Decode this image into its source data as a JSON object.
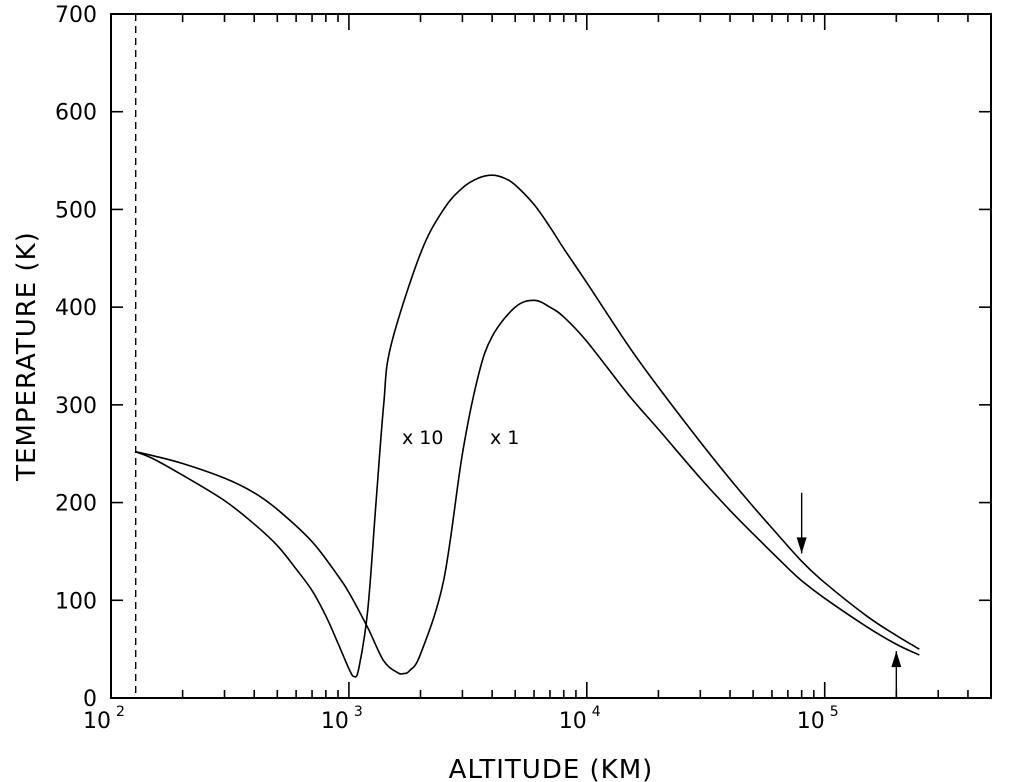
{
  "chart_data": {
    "type": "line",
    "title": "",
    "xlabel": "ALTITUDE (KM)",
    "ylabel": "TEMPERATURE (K)",
    "x_scale": "log",
    "xlim": [
      100,
      500000
    ],
    "ylim": [
      0,
      700
    ],
    "grid": false,
    "legend": "none",
    "x_ticks": [
      {
        "base": "10",
        "exp": "2"
      },
      {
        "base": "10",
        "exp": "3"
      },
      {
        "base": "10",
        "exp": "4"
      },
      {
        "base": "10",
        "exp": "5"
      }
    ],
    "y_ticks": [
      "0",
      "100",
      "200",
      "300",
      "400",
      "500",
      "600",
      "700"
    ],
    "reference_line": {
      "x": 127,
      "style": "dashed"
    },
    "series": [
      {
        "name": "x10",
        "label": "x 10",
        "points": [
          [
            127,
            252
          ],
          [
            150,
            245
          ],
          [
            200,
            228
          ],
          [
            300,
            202
          ],
          [
            400,
            178
          ],
          [
            500,
            156
          ],
          [
            600,
            132
          ],
          [
            700,
            110
          ],
          [
            800,
            84
          ],
          [
            900,
            56
          ],
          [
            1000,
            30
          ],
          [
            1050,
            22
          ],
          [
            1100,
            30
          ],
          [
            1200,
            90
          ],
          [
            1300,
            200
          ],
          [
            1400,
            300
          ],
          [
            1500,
            360
          ],
          [
            2000,
            455
          ],
          [
            2500,
            500
          ],
          [
            3000,
            522
          ],
          [
            3500,
            532
          ],
          [
            4000,
            535
          ],
          [
            4500,
            532
          ],
          [
            5000,
            525
          ],
          [
            6000,
            505
          ],
          [
            7000,
            482
          ],
          [
            8000,
            460
          ],
          [
            10000,
            425
          ],
          [
            15000,
            360
          ],
          [
            20000,
            318
          ],
          [
            30000,
            262
          ],
          [
            40000,
            224
          ],
          [
            50000,
            196
          ],
          [
            60000,
            174
          ],
          [
            80000,
            140
          ],
          [
            100000,
            118
          ],
          [
            150000,
            84
          ],
          [
            200000,
            64
          ],
          [
            250000,
            50
          ]
        ]
      },
      {
        "name": "x1",
        "label": "x 1",
        "points": [
          [
            127,
            252
          ],
          [
            150,
            248
          ],
          [
            200,
            240
          ],
          [
            300,
            225
          ],
          [
            400,
            210
          ],
          [
            500,
            193
          ],
          [
            700,
            160
          ],
          [
            900,
            125
          ],
          [
            1000,
            108
          ],
          [
            1200,
            72
          ],
          [
            1400,
            38
          ],
          [
            1600,
            26
          ],
          [
            1700,
            25
          ],
          [
            1800,
            28
          ],
          [
            2000,
            45
          ],
          [
            2500,
            120
          ],
          [
            3000,
            250
          ],
          [
            3500,
            330
          ],
          [
            4000,
            370
          ],
          [
            5000,
            400
          ],
          [
            6000,
            407
          ],
          [
            7000,
            400
          ],
          [
            8000,
            390
          ],
          [
            10000,
            365
          ],
          [
            15000,
            310
          ],
          [
            20000,
            275
          ],
          [
            30000,
            225
          ],
          [
            40000,
            192
          ],
          [
            50000,
            168
          ],
          [
            70000,
            133
          ],
          [
            80000,
            120
          ],
          [
            100000,
            102
          ],
          [
            150000,
            73
          ],
          [
            200000,
            55
          ],
          [
            250000,
            44
          ]
        ]
      }
    ],
    "annotations": [
      {
        "type": "arrow",
        "direction": "down",
        "x": 80000,
        "y_from": 210,
        "y_to": 148
      },
      {
        "type": "arrow",
        "direction": "up",
        "x": 200000,
        "y_from": 0,
        "y_to": 48
      }
    ]
  }
}
